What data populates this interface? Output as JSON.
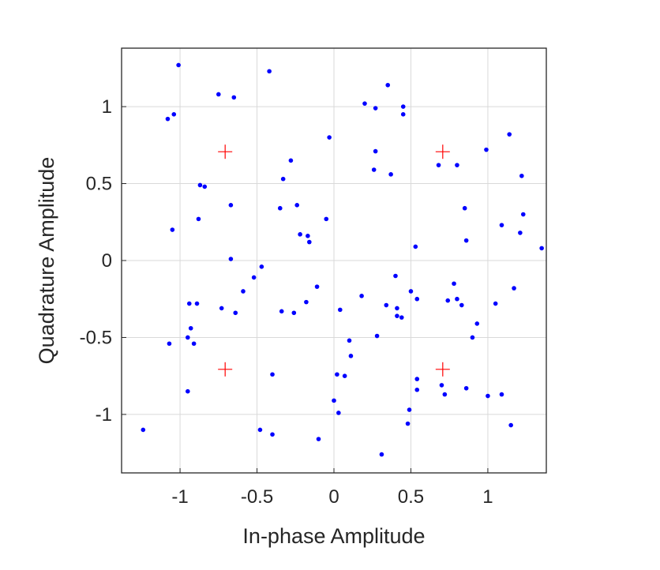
{
  "chart_data": {
    "type": "scatter",
    "xlabel": "In-phase Amplitude",
    "ylabel": "Quadrature Amplitude",
    "xlim": [
      -1.38,
      1.38
    ],
    "ylim": [
      -1.38,
      1.38
    ],
    "grid": true,
    "xticks": [
      -1,
      -0.5,
      0,
      0.5,
      1
    ],
    "xtick_labels": [
      "-1",
      "-0.5",
      "0",
      "0.5",
      "1"
    ],
    "yticks": [
      -1,
      -0.5,
      0,
      0.5,
      1
    ],
    "ytick_labels": [
      "-1",
      "-0.5",
      "0",
      "0.5",
      "1"
    ],
    "series": [
      {
        "marker": "dot",
        "color": "#0000ff",
        "points": [
          [
            -1.01,
            1.27
          ],
          [
            -0.42,
            1.23
          ],
          [
            -0.75,
            1.08
          ],
          [
            -0.65,
            1.06
          ],
          [
            -1.08,
            0.92
          ],
          [
            -1.04,
            0.95
          ],
          [
            0.35,
            1.14
          ],
          [
            0.2,
            1.02
          ],
          [
            0.27,
            0.99
          ],
          [
            0.45,
            1.0
          ],
          [
            0.45,
            0.95
          ],
          [
            -0.03,
            0.8
          ],
          [
            0.27,
            0.71
          ],
          [
            0.26,
            0.59
          ],
          [
            0.37,
            0.56
          ],
          [
            -0.28,
            0.65
          ],
          [
            -0.33,
            0.53
          ],
          [
            -0.87,
            0.49
          ],
          [
            -0.84,
            0.48
          ],
          [
            -0.35,
            0.34
          ],
          [
            -0.24,
            0.36
          ],
          [
            -0.67,
            0.36
          ],
          [
            -0.88,
            0.27
          ],
          [
            -0.05,
            0.27
          ],
          [
            -0.22,
            0.17
          ],
          [
            -0.17,
            0.16
          ],
          [
            -0.16,
            0.12
          ],
          [
            -1.05,
            0.2
          ],
          [
            -0.67,
            0.01
          ],
          [
            -0.47,
            -0.04
          ],
          [
            -0.52,
            -0.11
          ],
          [
            -0.59,
            -0.2
          ],
          [
            -0.11,
            -0.17
          ],
          [
            -0.94,
            -0.28
          ],
          [
            -0.89,
            -0.28
          ],
          [
            -0.73,
            -0.31
          ],
          [
            -0.34,
            -0.33
          ],
          [
            -0.26,
            -0.34
          ],
          [
            -0.18,
            -0.27
          ],
          [
            -0.64,
            -0.34
          ],
          [
            -0.93,
            -0.44
          ],
          [
            -0.95,
            -0.5
          ],
          [
            -0.91,
            -0.54
          ],
          [
            -1.07,
            -0.54
          ],
          [
            0.04,
            -0.32
          ],
          [
            0.18,
            -0.23
          ],
          [
            0.34,
            -0.29
          ],
          [
            0.41,
            -0.31
          ],
          [
            0.41,
            -0.36
          ],
          [
            0.44,
            -0.37
          ],
          [
            0.4,
            -0.1
          ],
          [
            0.5,
            -0.2
          ],
          [
            0.54,
            -0.25
          ],
          [
            0.53,
            0.09
          ],
          [
            0.1,
            -0.52
          ],
          [
            0.11,
            -0.62
          ],
          [
            0.28,
            -0.49
          ],
          [
            -0.4,
            -0.74
          ],
          [
            0.02,
            -0.74
          ],
          [
            0.07,
            -0.75
          ],
          [
            -0.95,
            -0.85
          ],
          [
            0.54,
            -0.77
          ],
          [
            0.54,
            -0.84
          ],
          [
            0.0,
            -0.91
          ],
          [
            0.03,
            -0.99
          ],
          [
            0.49,
            -0.97
          ],
          [
            0.48,
            -1.06
          ],
          [
            -1.24,
            -1.1
          ],
          [
            -0.48,
            -1.1
          ],
          [
            -0.4,
            -1.13
          ],
          [
            -0.1,
            -1.16
          ],
          [
            0.31,
            -1.26
          ],
          [
            0.68,
            0.62
          ],
          [
            0.8,
            0.62
          ],
          [
            0.99,
            0.72
          ],
          [
            1.14,
            0.82
          ],
          [
            1.22,
            0.55
          ],
          [
            0.85,
            0.34
          ],
          [
            1.23,
            0.3
          ],
          [
            1.09,
            0.23
          ],
          [
            1.21,
            0.18
          ],
          [
            0.86,
            0.13
          ],
          [
            1.35,
            0.08
          ],
          [
            0.78,
            -0.15
          ],
          [
            0.74,
            -0.26
          ],
          [
            0.8,
            -0.25
          ],
          [
            0.83,
            -0.29
          ],
          [
            1.05,
            -0.28
          ],
          [
            1.17,
            -0.18
          ],
          [
            0.93,
            -0.41
          ],
          [
            0.9,
            -0.5
          ],
          [
            0.7,
            -0.81
          ],
          [
            0.72,
            -0.87
          ],
          [
            0.86,
            -0.83
          ],
          [
            1.0,
            -0.88
          ],
          [
            1.09,
            -0.87
          ],
          [
            1.15,
            -1.07
          ]
        ]
      },
      {
        "marker": "plus",
        "color": "#ff0000",
        "points": [
          [
            -0.707,
            0.707
          ],
          [
            0.707,
            0.707
          ],
          [
            -0.707,
            -0.707
          ],
          [
            0.707,
            -0.707
          ]
        ]
      }
    ]
  }
}
